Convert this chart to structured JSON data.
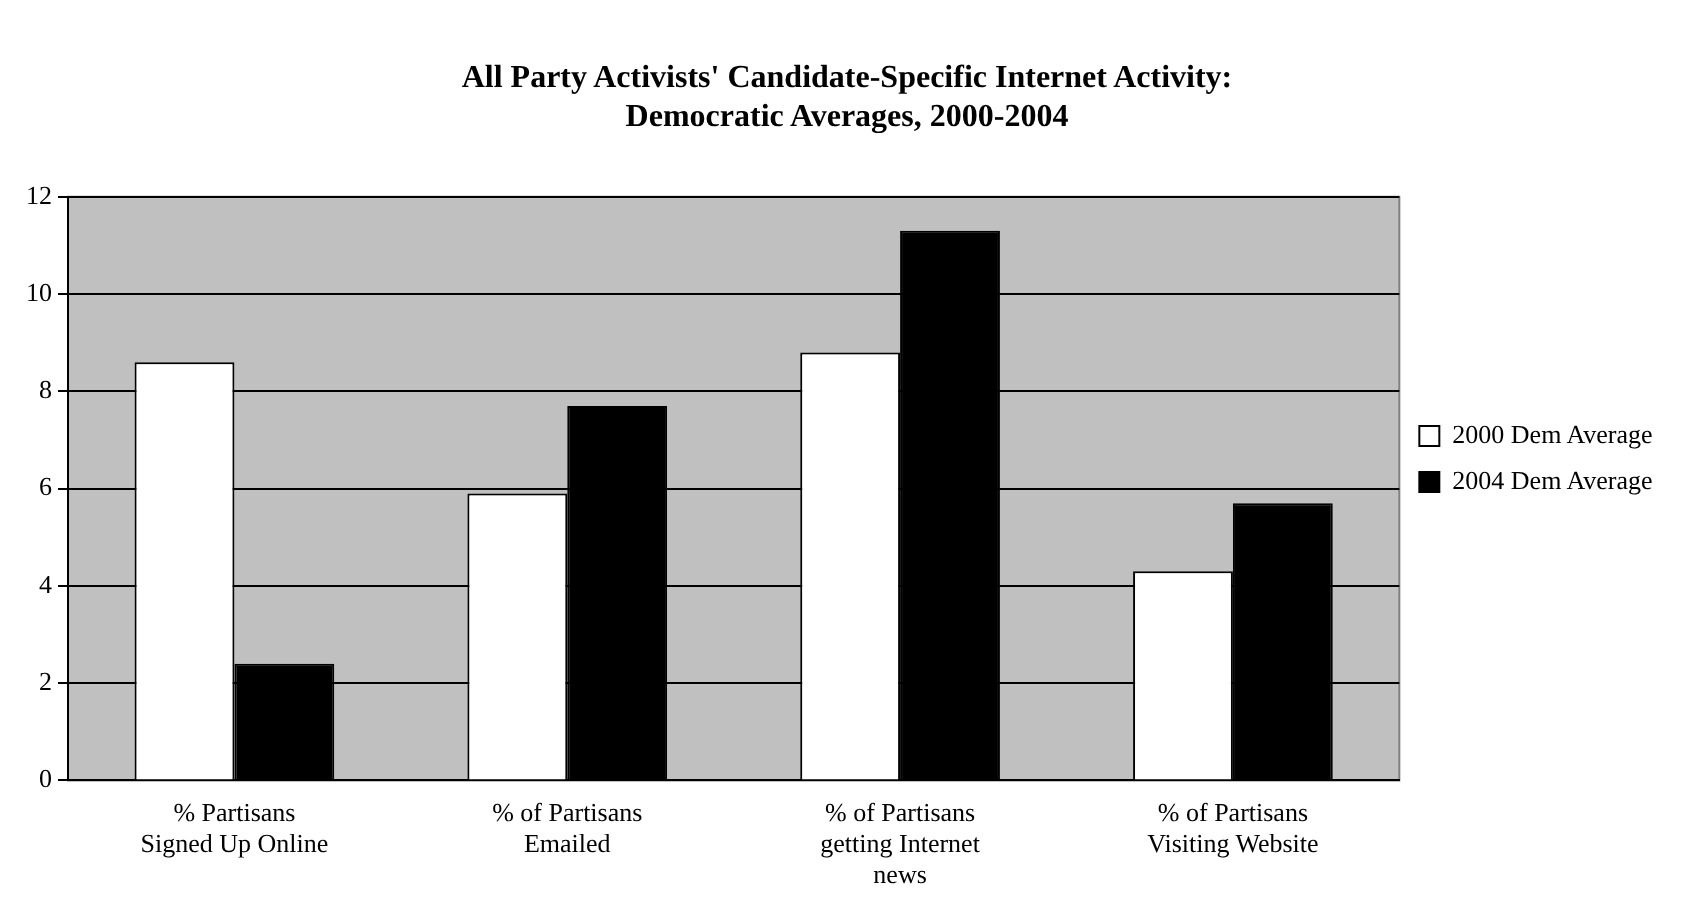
{
  "chart_data": {
    "type": "bar",
    "title": [
      "All Party Activists' Candidate-Specific Internet Activity:",
      "Democratic Averages, 2000-2004"
    ],
    "categories": [
      "% Partisans Signed Up Online",
      "% of Partisans Emailed",
      "% of Partisans getting Internet news",
      "% of Partisans Visiting Website"
    ],
    "series": [
      {
        "name": "2000 Dem Average",
        "color": "#ffffff",
        "values": [
          8.6,
          5.9,
          8.8,
          4.3
        ]
      },
      {
        "name": "2004 Dem Average",
        "color": "#000000",
        "values": [
          2.4,
          7.7,
          11.3,
          5.7
        ]
      }
    ],
    "ylim": [
      0,
      12
    ],
    "yticks": [
      0,
      2,
      4,
      6,
      8,
      10,
      12
    ],
    "grid": "y",
    "legend": "right"
  }
}
